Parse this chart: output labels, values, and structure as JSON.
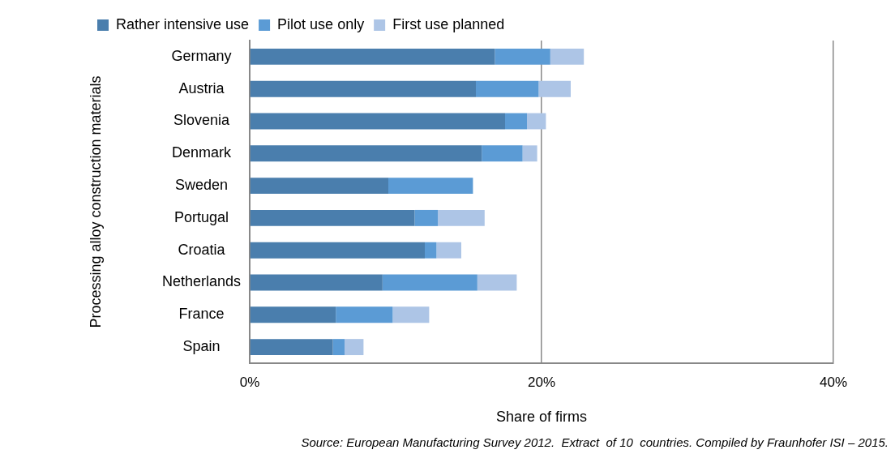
{
  "chart_data": {
    "type": "bar",
    "orientation": "horizontal",
    "stacked": true,
    "categories": [
      "Germany",
      "Austria",
      "Slovenia",
      "Denmark",
      "Sweden",
      "Portugal",
      "Croatia",
      "Netherlands",
      "France",
      "Spain"
    ],
    "series": [
      {
        "name": "Rather intensive use",
        "color": "#4a7ead",
        "values": [
          16.8,
          15.5,
          17.5,
          15.9,
          9.5,
          11.3,
          12.0,
          9.1,
          5.9,
          5.7
        ]
      },
      {
        "name": "Pilot use only",
        "color": "#5b9bd5",
        "values": [
          3.8,
          4.3,
          1.5,
          2.8,
          5.8,
          1.6,
          0.8,
          6.5,
          3.9,
          0.8
        ]
      },
      {
        "name": "First use planned",
        "color": "#adc5e6",
        "values": [
          2.3,
          2.2,
          1.3,
          1.0,
          0,
          3.2,
          1.7,
          2.7,
          2.5,
          1.3
        ]
      }
    ],
    "xlim": [
      0,
      40
    ],
    "xticks": [
      {
        "value": 0,
        "label": "0%"
      },
      {
        "value": 20,
        "label": "20%"
      },
      {
        "value": 40,
        "label": "40%"
      }
    ],
    "xlabel": "Share of firms",
    "ylabel": "Processing alloy construction materials",
    "grid": "x",
    "legend": "top",
    "annotations": [
      "Source: European Manufacturing Survey 2012.  Extract  of 10  countries. Compiled by Fraunhofer ISI – 2015."
    ]
  }
}
